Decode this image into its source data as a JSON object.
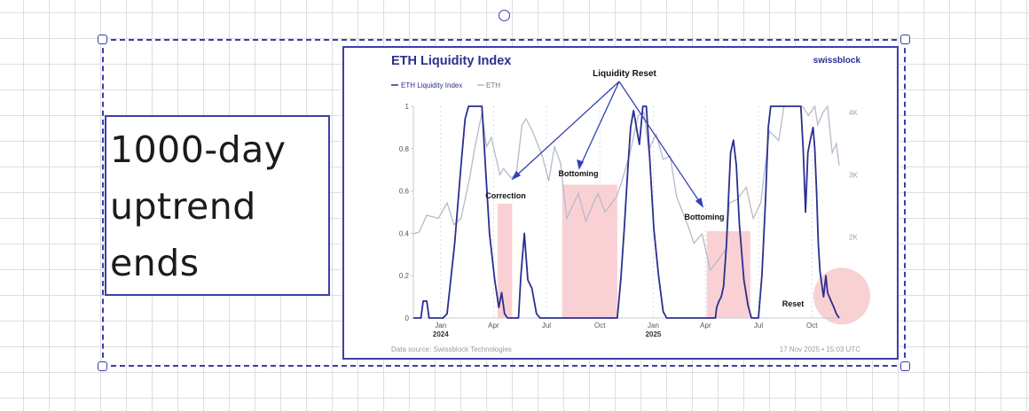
{
  "note": {
    "lines": [
      "1000-day",
      "uptrend",
      "ends"
    ]
  },
  "chart_data": {
    "type": "line",
    "title": "ETH Liquidity Index",
    "brand": "swissblock",
    "footer_left": "Data source: Swissblock Technologies",
    "footer_right": "17 Nov 2025 • 15:03 UTC",
    "xlim": [
      "2023-11-15",
      "2025-11-20"
    ],
    "ylim": [
      0,
      1
    ],
    "y2lim": [
      700,
      4100
    ],
    "left_ticks": [
      "0",
      "0.2",
      "0.4",
      "0.6",
      "0.8",
      "1"
    ],
    "right_ticks": [
      {
        "value": 2000,
        "label": "2K"
      },
      {
        "value": 3000,
        "label": "3K"
      },
      {
        "value": 4000,
        "label": "4K"
      }
    ],
    "x_ticks": [
      {
        "date": "2024-01-01",
        "label": "Jan",
        "year": "2024"
      },
      {
        "date": "2024-04-01",
        "label": "Apr",
        "year": ""
      },
      {
        "date": "2024-07-01",
        "label": "Jul",
        "year": ""
      },
      {
        "date": "2024-10-01",
        "label": "Oct",
        "year": ""
      },
      {
        "date": "2025-01-01",
        "label": "Jan",
        "year": "2025"
      },
      {
        "date": "2025-04-01",
        "label": "Apr",
        "year": ""
      },
      {
        "date": "2025-07-01",
        "label": "Jul",
        "year": ""
      },
      {
        "date": "2025-10-01",
        "label": "Oct",
        "year": ""
      }
    ],
    "series": [
      {
        "name": "ETH Liquidity Index",
        "axis": "left",
        "color": "#2b2f8f",
        "points": [
          [
            "2023-11-15",
            0
          ],
          [
            "2023-11-28",
            0
          ],
          [
            "2023-12-02",
            0.08
          ],
          [
            "2023-12-08",
            0.08
          ],
          [
            "2023-12-12",
            0
          ],
          [
            "2024-01-05",
            0
          ],
          [
            "2024-01-12",
            0.02
          ],
          [
            "2024-01-25",
            0.35
          ],
          [
            "2024-02-05",
            0.72
          ],
          [
            "2024-02-12",
            0.94
          ],
          [
            "2024-02-18",
            1
          ],
          [
            "2024-03-12",
            1
          ],
          [
            "2024-03-18",
            0.72
          ],
          [
            "2024-03-25",
            0.4
          ],
          [
            "2024-04-03",
            0.18
          ],
          [
            "2024-04-10",
            0.05
          ],
          [
            "2024-04-15",
            0.12
          ],
          [
            "2024-04-20",
            0.02
          ],
          [
            "2024-04-25",
            0
          ],
          [
            "2024-05-14",
            0
          ],
          [
            "2024-05-18",
            0.2
          ],
          [
            "2024-05-24",
            0.4
          ],
          [
            "2024-05-30",
            0.18
          ],
          [
            "2024-06-06",
            0.14
          ],
          [
            "2024-06-14",
            0.02
          ],
          [
            "2024-06-20",
            0
          ],
          [
            "2024-10-31",
            0
          ],
          [
            "2024-11-06",
            0.18
          ],
          [
            "2024-11-12",
            0.42
          ],
          [
            "2024-11-18",
            0.7
          ],
          [
            "2024-11-23",
            0.9
          ],
          [
            "2024-11-28",
            0.98
          ],
          [
            "2024-12-08",
            0.82
          ],
          [
            "2024-12-14",
            1
          ],
          [
            "2024-12-20",
            1
          ],
          [
            "2024-12-26",
            0.75
          ],
          [
            "2025-01-02",
            0.42
          ],
          [
            "2025-01-10",
            0.2
          ],
          [
            "2025-01-18",
            0.03
          ],
          [
            "2025-01-24",
            0
          ],
          [
            "2025-04-18",
            0
          ],
          [
            "2025-04-20",
            0.05
          ],
          [
            "2025-04-24",
            0.08
          ],
          [
            "2025-04-28",
            0.1
          ],
          [
            "2025-05-02",
            0.15
          ],
          [
            "2025-05-07",
            0.35
          ],
          [
            "2025-05-11",
            0.6
          ],
          [
            "2025-05-14",
            0.78
          ],
          [
            "2025-05-19",
            0.84
          ],
          [
            "2025-05-24",
            0.72
          ],
          [
            "2025-05-29",
            0.45
          ],
          [
            "2025-06-06",
            0.18
          ],
          [
            "2025-06-13",
            0.06
          ],
          [
            "2025-06-19",
            0
          ],
          [
            "2025-07-01",
            0
          ],
          [
            "2025-07-07",
            0.2
          ],
          [
            "2025-07-13",
            0.55
          ],
          [
            "2025-07-18",
            0.9
          ],
          [
            "2025-07-22",
            1
          ],
          [
            "2025-09-12",
            1
          ],
          [
            "2025-09-16",
            0.8
          ],
          [
            "2025-09-20",
            0.5
          ],
          [
            "2025-09-24",
            0.78
          ],
          [
            "2025-09-29",
            0.85
          ],
          [
            "2025-10-03",
            0.9
          ],
          [
            "2025-10-06",
            0.8
          ],
          [
            "2025-10-09",
            0.6
          ],
          [
            "2025-10-12",
            0.35
          ],
          [
            "2025-10-15",
            0.22
          ],
          [
            "2025-10-17",
            0.18
          ],
          [
            "2025-10-21",
            0.1
          ],
          [
            "2025-10-25",
            0.2
          ],
          [
            "2025-10-28",
            0.12
          ],
          [
            "2025-11-03",
            0.08
          ],
          [
            "2025-11-08",
            0.05
          ],
          [
            "2025-11-12",
            0.02
          ],
          [
            "2025-11-17",
            0
          ]
        ]
      },
      {
        "name": "ETH",
        "axis": "right",
        "color": "#b9b9c9",
        "points": [
          [
            "2023-11-15",
            2050
          ],
          [
            "2023-11-25",
            2080
          ],
          [
            "2023-12-08",
            2350
          ],
          [
            "2023-12-28",
            2300
          ],
          [
            "2024-01-12",
            2550
          ],
          [
            "2024-01-24",
            2200
          ],
          [
            "2024-02-05",
            2300
          ],
          [
            "2024-02-20",
            2950
          ],
          [
            "2024-02-28",
            3400
          ],
          [
            "2024-03-12",
            4000
          ],
          [
            "2024-03-20",
            3450
          ],
          [
            "2024-03-28",
            3600
          ],
          [
            "2024-04-12",
            3000
          ],
          [
            "2024-04-18",
            3100
          ],
          [
            "2024-05-01",
            2950
          ],
          [
            "2024-05-10",
            3000
          ],
          [
            "2024-05-20",
            3800
          ],
          [
            "2024-05-27",
            3900
          ],
          [
            "2024-06-07",
            3700
          ],
          [
            "2024-06-24",
            3300
          ],
          [
            "2024-07-05",
            2900
          ],
          [
            "2024-07-15",
            3450
          ],
          [
            "2024-07-25",
            3200
          ],
          [
            "2024-08-05",
            2300
          ],
          [
            "2024-08-25",
            2700
          ],
          [
            "2024-09-07",
            2250
          ],
          [
            "2024-09-20",
            2550
          ],
          [
            "2024-09-28",
            2700
          ],
          [
            "2024-10-10",
            2400
          ],
          [
            "2024-10-30",
            2650
          ],
          [
            "2024-11-08",
            2900
          ],
          [
            "2024-11-22",
            3350
          ],
          [
            "2024-12-06",
            3950
          ],
          [
            "2024-12-16",
            4000
          ],
          [
            "2024-12-24",
            3400
          ],
          [
            "2025-01-06",
            3650
          ],
          [
            "2025-01-18",
            3250
          ],
          [
            "2025-01-30",
            3300
          ],
          [
            "2025-02-10",
            2650
          ],
          [
            "2025-03-01",
            2200
          ],
          [
            "2025-03-12",
            1900
          ],
          [
            "2025-03-26",
            2050
          ],
          [
            "2025-04-09",
            1470
          ],
          [
            "2025-04-20",
            1600
          ],
          [
            "2025-05-06",
            1800
          ],
          [
            "2025-05-12",
            2550
          ],
          [
            "2025-05-25",
            2600
          ],
          [
            "2025-06-10",
            2800
          ],
          [
            "2025-06-22",
            2300
          ],
          [
            "2025-07-05",
            2550
          ],
          [
            "2025-07-20",
            3700
          ],
          [
            "2025-08-05",
            3550
          ],
          [
            "2025-08-14",
            4650
          ],
          [
            "2025-08-24",
            4850
          ],
          [
            "2025-09-05",
            4300
          ],
          [
            "2025-09-15",
            4650
          ],
          [
            "2025-09-25",
            3950
          ],
          [
            "2025-10-06",
            4550
          ],
          [
            "2025-10-11",
            3800
          ],
          [
            "2025-10-20",
            4000
          ],
          [
            "2025-10-28",
            4100
          ],
          [
            "2025-11-05",
            3350
          ],
          [
            "2025-11-12",
            3500
          ],
          [
            "2025-11-17",
            3150
          ]
        ]
      }
    ],
    "shaded_periods": [
      {
        "start": "2024-04-08",
        "end": "2024-05-03",
        "top": 0.54
      },
      {
        "start": "2024-07-28",
        "end": "2024-10-31",
        "top": 0.63
      },
      {
        "start": "2025-04-03",
        "end": "2025-06-17",
        "top": 0.41
      }
    ],
    "reset_marker": {
      "date": "2025-11-17",
      "value": 0.07
    },
    "annotations": {
      "liquidity_reset": "Liquidity Reset",
      "correction": "Correction",
      "bottoming": "Bottoming",
      "reset": "Reset"
    }
  }
}
